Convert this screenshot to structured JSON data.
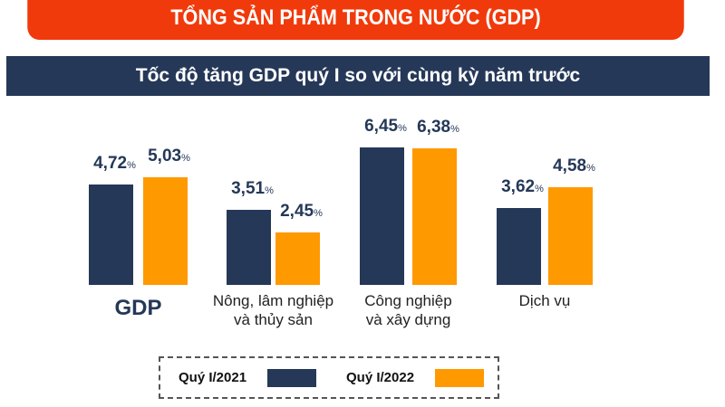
{
  "header": {
    "title": "TỔNG SẢN PHẨM TRONG NƯỚC (GDP)",
    "subtitle": "Tốc độ tăng GDP quý I so với cùng kỳ năm trước"
  },
  "chart_data": {
    "type": "bar",
    "title": "Tốc độ tăng GDP quý I so với cùng kỳ năm trước",
    "categories": [
      "GDP",
      "Nông, lâm nghiệp và thủy sản",
      "Công nghiệp và xây dựng",
      "Dịch vụ"
    ],
    "category_lines": [
      [
        "GDP"
      ],
      [
        "Nông, lâm nghiệp",
        "và thủy sản"
      ],
      [
        "Công nghiệp",
        "và xây dựng"
      ],
      [
        "Dịch vụ"
      ]
    ],
    "unit": "%",
    "series": [
      {
        "name": "Quý I/2021",
        "color": "#253858",
        "values": [
          4.72,
          3.51,
          6.45,
          3.62
        ],
        "labels": [
          "4,72",
          "3,51",
          "6,45",
          "3,62"
        ]
      },
      {
        "name": "Quý I/2022",
        "color": "#ff9900",
        "values": [
          5.03,
          2.45,
          6.38,
          4.58
        ],
        "labels": [
          "5,03",
          "2,45",
          "6,38",
          "4,58"
        ]
      }
    ],
    "ylim": [
      0,
      7
    ],
    "grid": false,
    "legend": "bottom"
  }
}
